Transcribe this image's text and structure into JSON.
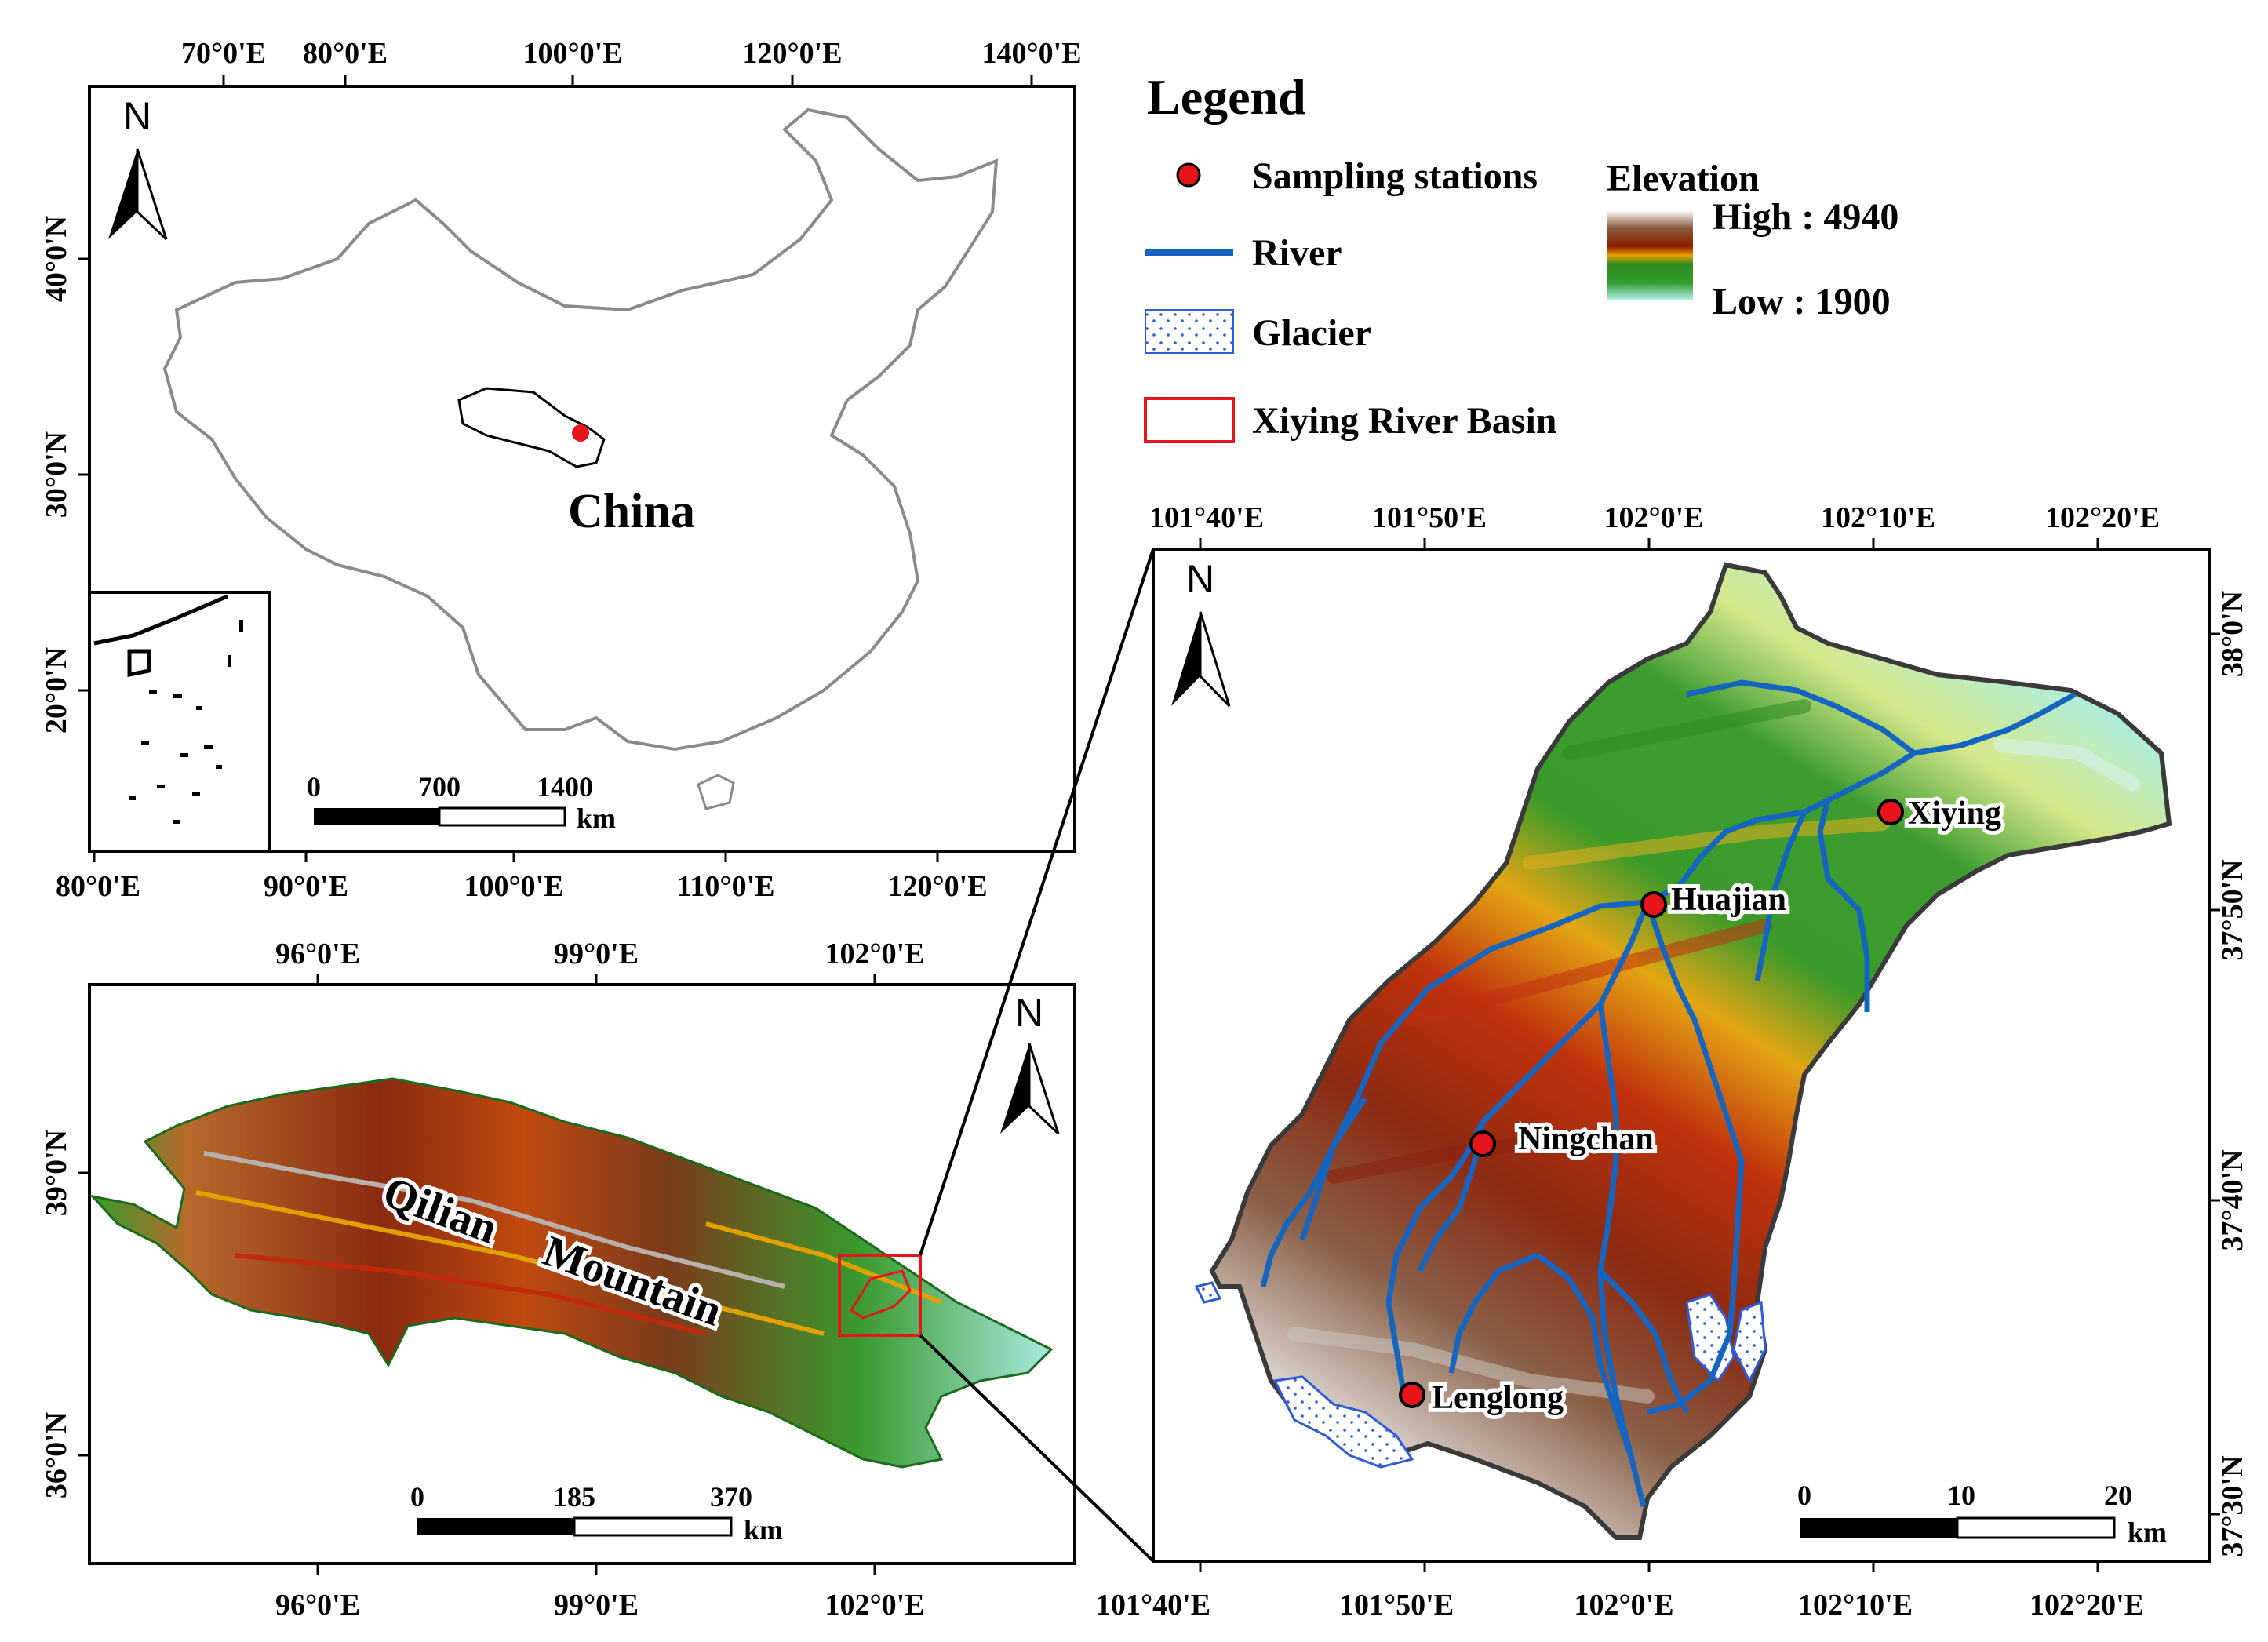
{
  "legend": {
    "title": "Legend",
    "sampling_stations": "Sampling stations",
    "river": "River",
    "glacier": "Glacier",
    "basin": "Xiying River Basin",
    "elevation_title": "Elevation",
    "elevation_high": "High : 4940",
    "elevation_low": "Low : 1900",
    "colors": {
      "station": "#e8141b",
      "river": "#1565c0",
      "basin": "#e8141b"
    }
  },
  "map_china": {
    "label": "China",
    "north": "N",
    "top_ticks": [
      "70°0'E",
      "80°0'E",
      "100°0'E",
      "120°0'E",
      "140°0'E"
    ],
    "bottom_ticks": [
      "80°0'E",
      "90°0'E",
      "100°0'E",
      "110°0'E",
      "120°0'E"
    ],
    "left_ticks": [
      "40°0'N",
      "30°0'N",
      "20°0'N"
    ],
    "scale": {
      "labels": [
        "0",
        "700",
        "1400"
      ],
      "unit": "km"
    }
  },
  "map_qilian": {
    "label_1": "Qilian",
    "label_2": "Mountain",
    "north": "N",
    "top_ticks": [
      "96°0'E",
      "99°0'E",
      "102°0'E"
    ],
    "bottom_ticks": [
      "96°0'E",
      "99°0'E",
      "102°0'E"
    ],
    "left_ticks": [
      "39°0'N",
      "36°0'N"
    ],
    "scale": {
      "labels": [
        "0",
        "185",
        "370"
      ],
      "unit": "km"
    }
  },
  "map_basin": {
    "north": "N",
    "top_ticks": [
      "101°40'E",
      "101°50'E",
      "102°0'E",
      "102°10'E",
      "102°20'E"
    ],
    "bottom_ticks": [
      "101°40'E",
      "101°50'E",
      "102°0'E",
      "102°10'E",
      "102°20'E"
    ],
    "right_ticks": [
      "38°0'N",
      "37°50'N",
      "37°40'N",
      "37°30'N"
    ],
    "stations": [
      "Xiying",
      "Huajian",
      "Ningchan",
      "Lenglong"
    ],
    "scale": {
      "labels": [
        "0",
        "10",
        "20"
      ],
      "unit": "km"
    }
  }
}
